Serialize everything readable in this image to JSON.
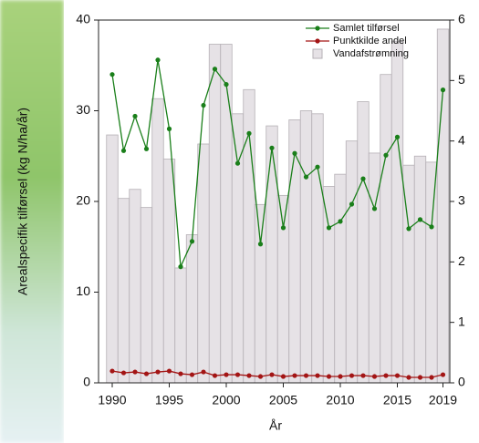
{
  "chart_data": {
    "type": "bar",
    "x": [
      1990,
      1991,
      1992,
      1993,
      1994,
      1995,
      1996,
      1997,
      1998,
      1999,
      2000,
      2001,
      2002,
      2003,
      2004,
      2005,
      2006,
      2007,
      2008,
      2009,
      2010,
      2011,
      2012,
      2013,
      2014,
      2015,
      2016,
      2017,
      2018,
      2019
    ],
    "series": [
      {
        "name": "Vandafstrømning",
        "type": "bar",
        "axis": "y2",
        "color": "#e6e2e6",
        "values": [
          4.1,
          3.05,
          3.2,
          2.9,
          4.7,
          3.7,
          1.9,
          2.45,
          3.95,
          5.6,
          5.6,
          4.45,
          4.85,
          2.95,
          4.25,
          3.1,
          4.35,
          4.5,
          4.45,
          3.25,
          3.45,
          4.0,
          4.65,
          3.8,
          5.1,
          5.65,
          3.6,
          3.75,
          3.65,
          5.85
        ]
      },
      {
        "name": "Samlet tilførsel",
        "type": "line",
        "color": "#1a7f1a",
        "values": [
          34.0,
          25.6,
          29.4,
          25.8,
          35.6,
          28.0,
          12.8,
          15.6,
          30.6,
          34.6,
          32.9,
          24.2,
          27.5,
          15.3,
          25.9,
          17.1,
          25.3,
          22.7,
          23.8,
          17.1,
          17.8,
          19.7,
          22.5,
          19.2,
          25.1,
          27.1,
          17.0,
          18.0,
          17.2,
          32.3
        ]
      },
      {
        "name": "Punktkilde andel",
        "type": "line",
        "color": "#a31515",
        "values": [
          1.3,
          1.1,
          1.2,
          1.0,
          1.2,
          1.3,
          1.0,
          0.9,
          1.2,
          0.8,
          0.9,
          0.9,
          0.8,
          0.7,
          0.9,
          0.7,
          0.8,
          0.8,
          0.8,
          0.7,
          0.7,
          0.8,
          0.8,
          0.7,
          0.8,
          0.8,
          0.6,
          0.6,
          0.6,
          0.9
        ]
      }
    ],
    "xlabel": "År",
    "ylabel": "Arealspecifik tilførsel (kg N/ha/år)",
    "xlim": [
      1988.8,
      2019.6
    ],
    "xticks": [
      1990,
      1995,
      2000,
      2005,
      2010,
      2015,
      2019
    ],
    "ylim": [
      0,
      40
    ],
    "yticks": [
      0,
      10,
      20,
      30,
      40
    ],
    "y2lim": [
      0,
      6
    ],
    "y2ticks": [
      0,
      1,
      2,
      3,
      4,
      5,
      6
    ],
    "legend": "top-right"
  }
}
